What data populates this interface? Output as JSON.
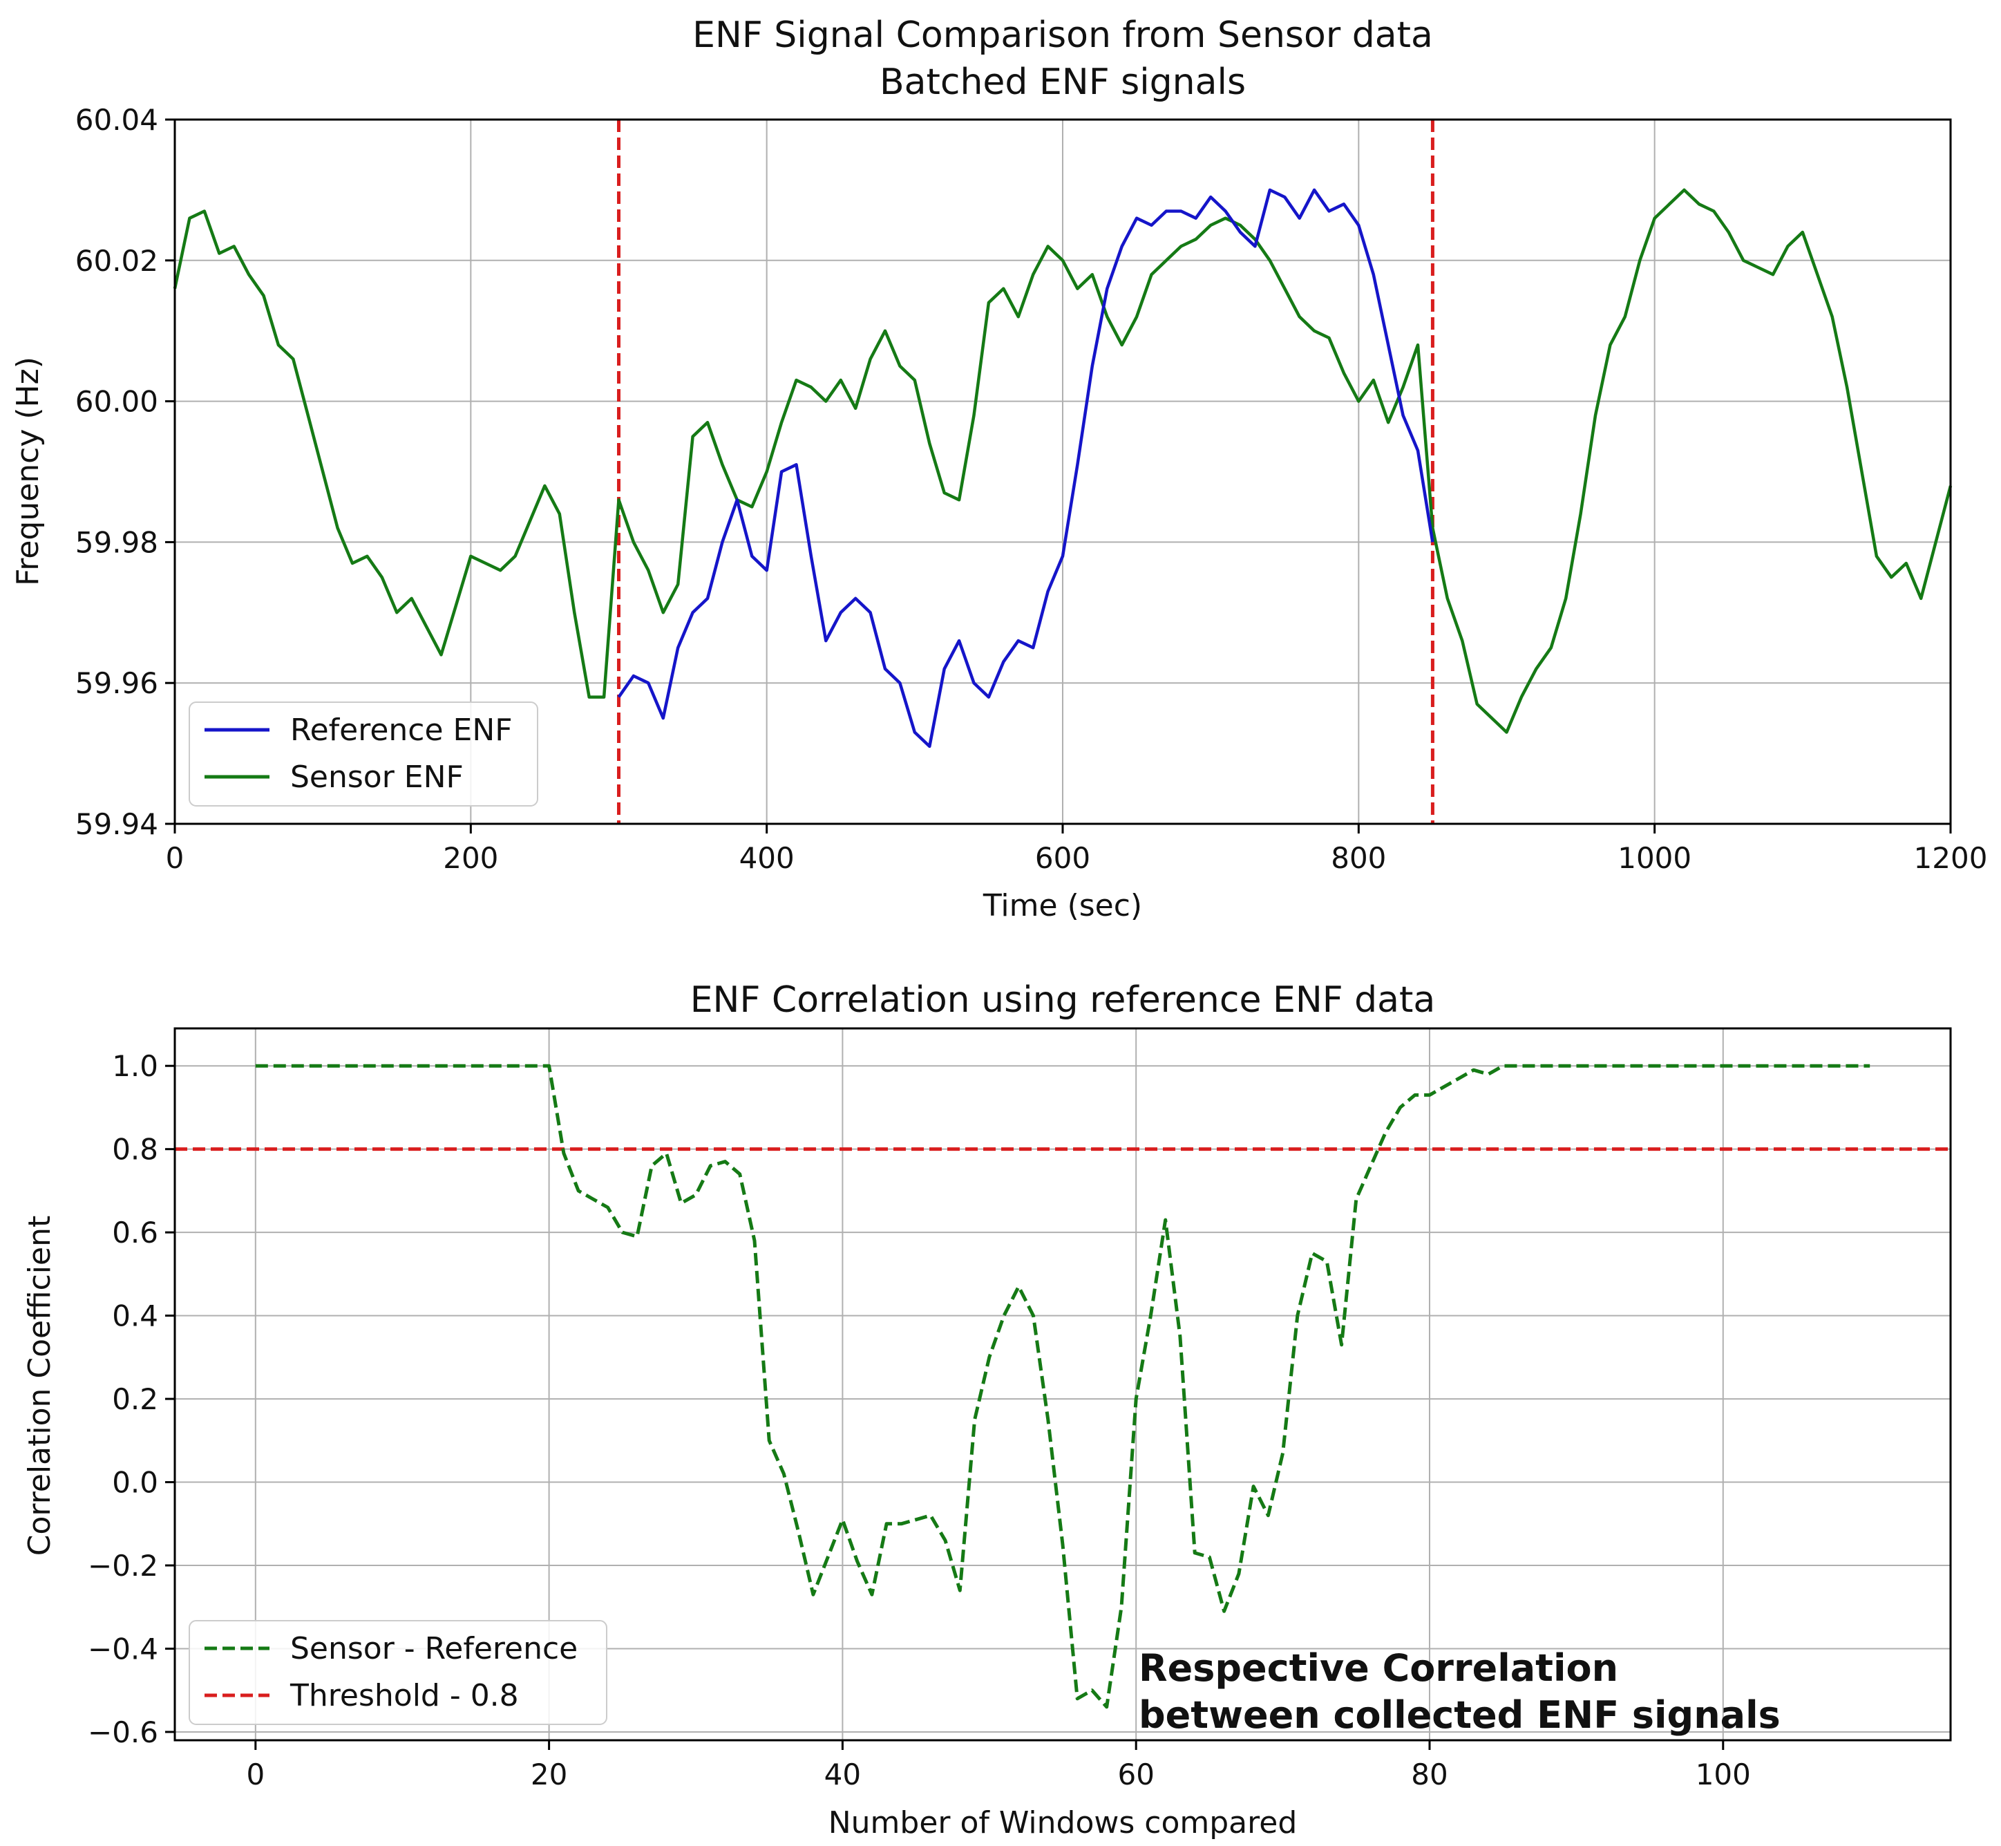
{
  "colors": {
    "reference": "#1515c9",
    "sensor": "#157a15",
    "threshold": "#d91e1e",
    "correlation": "#157a15"
  },
  "chart_data": [
    {
      "type": "line",
      "title": "ENF Signal Comparison from Sensor data",
      "subtitle": "Batched ENF signals",
      "xlabel": "Time (sec)",
      "ylabel": "Frequency (Hz)",
      "xlim": [
        0,
        1200
      ],
      "ylim": [
        59.94,
        60.04
      ],
      "xticks": [
        "0",
        "200",
        "400",
        "600",
        "800",
        "1000",
        "1200"
      ],
      "yticks": [
        "59.94",
        "59.96",
        "59.98",
        "60.00",
        "60.02",
        "60.04"
      ],
      "grid": true,
      "legend_position": "lower-left",
      "vlines": [
        300,
        850
      ],
      "series": [
        {
          "name": "Reference ENF",
          "x": [
            300,
            310,
            320,
            330,
            340,
            350,
            360,
            370,
            380,
            390,
            400,
            410,
            420,
            430,
            440,
            450,
            460,
            470,
            480,
            490,
            500,
            510,
            520,
            530,
            540,
            550,
            560,
            570,
            580,
            590,
            600,
            610,
            620,
            630,
            640,
            650,
            660,
            670,
            680,
            690,
            700,
            710,
            720,
            730,
            740,
            750,
            760,
            770,
            780,
            790,
            800,
            810,
            820,
            830,
            840,
            850
          ],
          "y": [
            59.958,
            59.961,
            59.96,
            59.955,
            59.965,
            59.97,
            59.972,
            59.98,
            59.986,
            59.978,
            59.976,
            59.99,
            59.991,
            59.978,
            59.966,
            59.97,
            59.972,
            59.97,
            59.962,
            59.96,
            59.953,
            59.951,
            59.962,
            59.966,
            59.96,
            59.958,
            59.963,
            59.966,
            59.965,
            59.973,
            59.978,
            59.991,
            60.005,
            60.016,
            60.022,
            60.026,
            60.025,
            60.027,
            60.027,
            60.026,
            60.029,
            60.027,
            60.024,
            60.022,
            60.03,
            60.029,
            60.026,
            60.03,
            60.027,
            60.028,
            60.025,
            60.018,
            60.008,
            59.998,
            59.993,
            59.98
          ]
        },
        {
          "name": "Sensor ENF",
          "x": [
            0,
            10,
            20,
            30,
            40,
            50,
            60,
            70,
            80,
            90,
            100,
            110,
            120,
            130,
            140,
            150,
            160,
            170,
            180,
            190,
            200,
            210,
            220,
            230,
            240,
            250,
            260,
            270,
            280,
            290,
            300,
            310,
            320,
            330,
            340,
            350,
            360,
            370,
            380,
            390,
            400,
            410,
            420,
            430,
            440,
            450,
            460,
            470,
            480,
            490,
            500,
            510,
            520,
            530,
            540,
            550,
            560,
            570,
            580,
            590,
            600,
            610,
            620,
            630,
            640,
            650,
            660,
            670,
            680,
            690,
            700,
            710,
            720,
            730,
            740,
            750,
            760,
            770,
            780,
            790,
            800,
            810,
            820,
            830,
            840,
            850,
            860,
            870,
            880,
            890,
            900,
            910,
            920,
            930,
            940,
            950,
            960,
            970,
            980,
            990,
            1000,
            1010,
            1020,
            1030,
            1040,
            1050,
            1060,
            1070,
            1080,
            1090,
            1100,
            1110,
            1120,
            1130,
            1140,
            1150,
            1160,
            1170,
            1180,
            1190,
            1200
          ],
          "y": [
            60.016,
            60.026,
            60.027,
            60.021,
            60.022,
            60.018,
            60.015,
            60.008,
            60.006,
            59.998,
            59.99,
            59.982,
            59.977,
            59.978,
            59.975,
            59.97,
            59.972,
            59.968,
            59.964,
            59.971,
            59.978,
            59.977,
            59.976,
            59.978,
            59.983,
            59.988,
            59.984,
            59.97,
            59.958,
            59.958,
            59.986,
            59.98,
            59.976,
            59.97,
            59.974,
            59.995,
            59.997,
            59.991,
            59.986,
            59.985,
            59.99,
            59.997,
            60.003,
            60.002,
            60.0,
            60.003,
            59.999,
            60.006,
            60.01,
            60.005,
            60.003,
            59.994,
            59.987,
            59.986,
            59.998,
            60.014,
            60.016,
            60.012,
            60.018,
            60.022,
            60.02,
            60.016,
            60.018,
            60.012,
            60.008,
            60.012,
            60.018,
            60.02,
            60.022,
            60.023,
            60.025,
            60.026,
            60.025,
            60.023,
            60.02,
            60.016,
            60.012,
            60.01,
            60.009,
            60.004,
            60.0,
            60.003,
            59.997,
            60.002,
            60.008,
            59.982,
            59.972,
            59.966,
            59.957,
            59.955,
            59.953,
            59.958,
            59.962,
            59.965,
            59.972,
            59.984,
            59.998,
            60.008,
            60.012,
            60.02,
            60.026,
            60.028,
            60.03,
            60.028,
            60.027,
            60.024,
            60.02,
            60.019,
            60.018,
            60.022,
            60.024,
            60.018,
            60.012,
            60.002,
            59.99,
            59.978,
            59.975,
            59.977,
            59.972,
            59.98,
            59.988
          ]
        }
      ]
    },
    {
      "type": "line",
      "title": "ENF Correlation using reference ENF data",
      "xlabel": "Number of Windows compared",
      "ylabel": "Correlation Coefficient",
      "xlim": [
        -5.5,
        115.5
      ],
      "ylim": [
        -0.62,
        1.09
      ],
      "xticks": [
        "0",
        "20",
        "40",
        "60",
        "80",
        "100"
      ],
      "xtick_values": [
        0,
        20,
        40,
        60,
        80,
        100
      ],
      "yticks": [
        "1.0",
        "0.8",
        "0.6",
        "0.4",
        "0.2",
        "0.0",
        "−0.2",
        "−0.4",
        "−0.6"
      ],
      "ytick_values": [
        1.0,
        0.8,
        0.6,
        0.4,
        0.2,
        0.0,
        -0.2,
        -0.4,
        -0.6
      ],
      "grid": true,
      "legend_position": "lower-left",
      "threshold": 0.8,
      "annotation": [
        "Respective Correlation",
        "between collected ENF signals"
      ],
      "series": [
        {
          "name": "Sensor - Reference",
          "style": "dashed",
          "x": [
            0,
            1,
            2,
            3,
            4,
            5,
            6,
            7,
            8,
            9,
            10,
            11,
            12,
            13,
            14,
            15,
            16,
            17,
            18,
            19,
            20,
            21,
            22,
            23,
            24,
            25,
            26,
            27,
            28,
            29,
            30,
            31,
            32,
            33,
            34,
            35,
            36,
            37,
            38,
            39,
            40,
            41,
            42,
            43,
            44,
            45,
            46,
            47,
            48,
            49,
            50,
            51,
            52,
            53,
            54,
            55,
            56,
            57,
            58,
            59,
            60,
            61,
            62,
            63,
            64,
            65,
            66,
            67,
            68,
            69,
            70,
            71,
            72,
            73,
            74,
            75,
            76,
            77,
            78,
            79,
            80,
            81,
            82,
            83,
            84,
            85,
            86,
            87,
            88,
            89,
            90,
            91,
            92,
            93,
            94,
            95,
            96,
            97,
            98,
            99,
            100,
            101,
            102,
            103,
            104,
            105,
            106,
            107,
            108,
            109,
            110
          ],
          "y": [
            1.0,
            1.0,
            1.0,
            1.0,
            1.0,
            1.0,
            1.0,
            1.0,
            1.0,
            1.0,
            1.0,
            1.0,
            1.0,
            1.0,
            1.0,
            1.0,
            1.0,
            1.0,
            1.0,
            1.0,
            1.0,
            0.79,
            0.7,
            0.68,
            0.66,
            0.6,
            0.59,
            0.76,
            0.79,
            0.67,
            0.69,
            0.76,
            0.77,
            0.74,
            0.58,
            0.1,
            0.02,
            -0.12,
            -0.27,
            -0.18,
            -0.09,
            -0.19,
            -0.27,
            -0.1,
            -0.1,
            -0.09,
            -0.08,
            -0.14,
            -0.26,
            0.15,
            0.3,
            0.4,
            0.47,
            0.4,
            0.15,
            -0.15,
            -0.52,
            -0.5,
            -0.54,
            -0.3,
            0.2,
            0.4,
            0.63,
            0.35,
            -0.17,
            -0.18,
            -0.31,
            -0.22,
            -0.01,
            -0.08,
            0.07,
            0.4,
            0.55,
            0.53,
            0.33,
            0.68,
            0.76,
            0.84,
            0.9,
            0.93,
            0.93,
            0.95,
            0.97,
            0.99,
            0.98,
            1.0,
            1.0,
            1.0,
            1.0,
            1.0,
            1.0,
            1.0,
            1.0,
            1.0,
            1.0,
            1.0,
            1.0,
            1.0,
            1.0,
            1.0,
            1.0,
            1.0,
            1.0,
            1.0,
            1.0,
            1.0,
            1.0,
            1.0,
            1.0,
            1.0,
            1.0
          ]
        },
        {
          "name": "Threshold - 0.8",
          "style": "dashed",
          "constant": 0.8
        }
      ]
    }
  ]
}
